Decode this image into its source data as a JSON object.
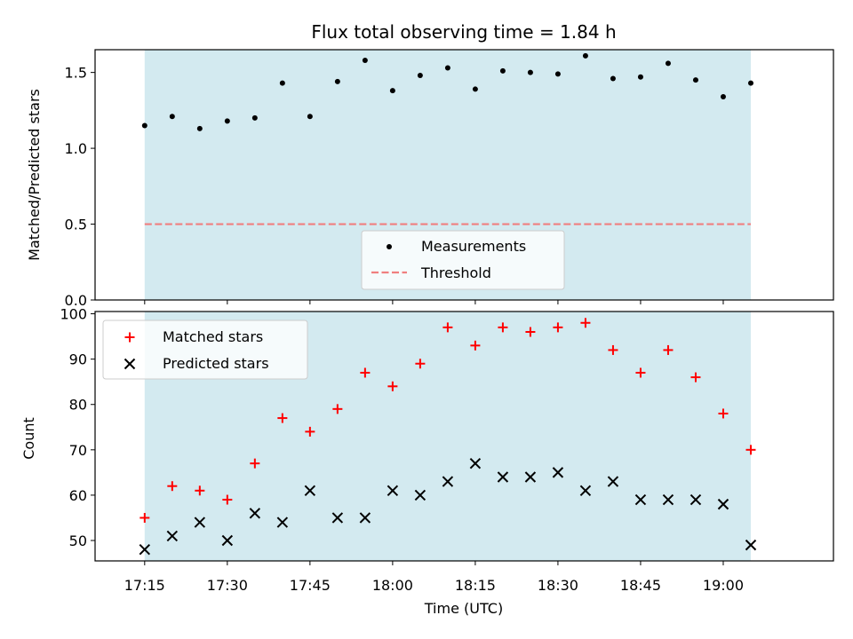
{
  "title": "Flux total observing time = 1.84 h",
  "colors": {
    "background_band": "#d3eaf0",
    "measurement": "#000000",
    "threshold": "#f07f7f",
    "matched": "#ff0000",
    "predicted": "#000000"
  },
  "chart_data": [
    {
      "type": "scatter",
      "ylabel": "Matched/Predicted stars",
      "ylim": [
        0,
        1.65
      ],
      "yticks": [
        0.0,
        0.5,
        1.0,
        1.5
      ],
      "ytick_labels": [
        "0.0",
        "0.5",
        "1.0",
        "1.5"
      ],
      "shaded_span": [
        "17:15",
        "19:05"
      ],
      "legend": {
        "placement": "lower center",
        "entries": [
          "Measurements",
          "Threshold"
        ]
      },
      "threshold": 0.5,
      "x": [
        "17:15",
        "17:20",
        "17:25",
        "17:30",
        "17:35",
        "17:40",
        "17:45",
        "17:50",
        "17:55",
        "18:00",
        "18:05",
        "18:10",
        "18:15",
        "18:20",
        "18:25",
        "18:30",
        "18:35",
        "18:40",
        "18:45",
        "18:50",
        "18:55",
        "19:00",
        "19:05"
      ],
      "series": [
        {
          "name": "Measurements",
          "marker": "dot",
          "values": [
            1.15,
            1.21,
            1.13,
            1.18,
            1.2,
            1.43,
            1.21,
            1.44,
            1.58,
            1.38,
            1.48,
            1.53,
            1.39,
            1.51,
            1.5,
            1.49,
            1.61,
            1.46,
            1.47,
            1.56,
            1.45,
            1.34,
            1.43
          ]
        },
        {
          "name": "Threshold",
          "marker": "dashed-line",
          "values": [
            0.5,
            0.5,
            0.5,
            0.5,
            0.5,
            0.5,
            0.5,
            0.5,
            0.5,
            0.5,
            0.5,
            0.5,
            0.5,
            0.5,
            0.5,
            0.5,
            0.5,
            0.5,
            0.5,
            0.5,
            0.5,
            0.5,
            0.5
          ]
        }
      ]
    },
    {
      "type": "scatter",
      "xlabel": "Time (UTC)",
      "ylabel": "Count",
      "ylim": [
        45.5,
        100.5
      ],
      "yticks": [
        50,
        60,
        70,
        80,
        90,
        100
      ],
      "ytick_labels": [
        "50",
        "60",
        "70",
        "80",
        "90",
        "100"
      ],
      "xlim": [
        "17:06",
        "19:20"
      ],
      "xtick_labels": [
        "17:15",
        "17:30",
        "17:45",
        "18:00",
        "18:15",
        "18:30",
        "18:45",
        "19:00"
      ],
      "shaded_span": [
        "17:15",
        "19:05"
      ],
      "legend": {
        "placement": "upper left",
        "entries": [
          "Matched stars",
          "Predicted stars"
        ]
      },
      "x": [
        "17:15",
        "17:20",
        "17:25",
        "17:30",
        "17:35",
        "17:40",
        "17:45",
        "17:50",
        "17:55",
        "18:00",
        "18:05",
        "18:10",
        "18:15",
        "18:20",
        "18:25",
        "18:30",
        "18:35",
        "18:40",
        "18:45",
        "18:50",
        "18:55",
        "19:00",
        "19:05"
      ],
      "series": [
        {
          "name": "Matched stars",
          "marker": "plus",
          "values": [
            55,
            62,
            61,
            59,
            67,
            77,
            74,
            79,
            87,
            84,
            89,
            97,
            93,
            97,
            96,
            97,
            98,
            92,
            87,
            92,
            86,
            78,
            70
          ]
        },
        {
          "name": "Predicted stars",
          "marker": "x",
          "values": [
            48,
            51,
            54,
            50,
            56,
            54,
            61,
            55,
            55,
            61,
            60,
            63,
            67,
            64,
            64,
            65,
            61,
            63,
            59,
            59,
            59,
            58,
            49
          ]
        }
      ]
    }
  ]
}
